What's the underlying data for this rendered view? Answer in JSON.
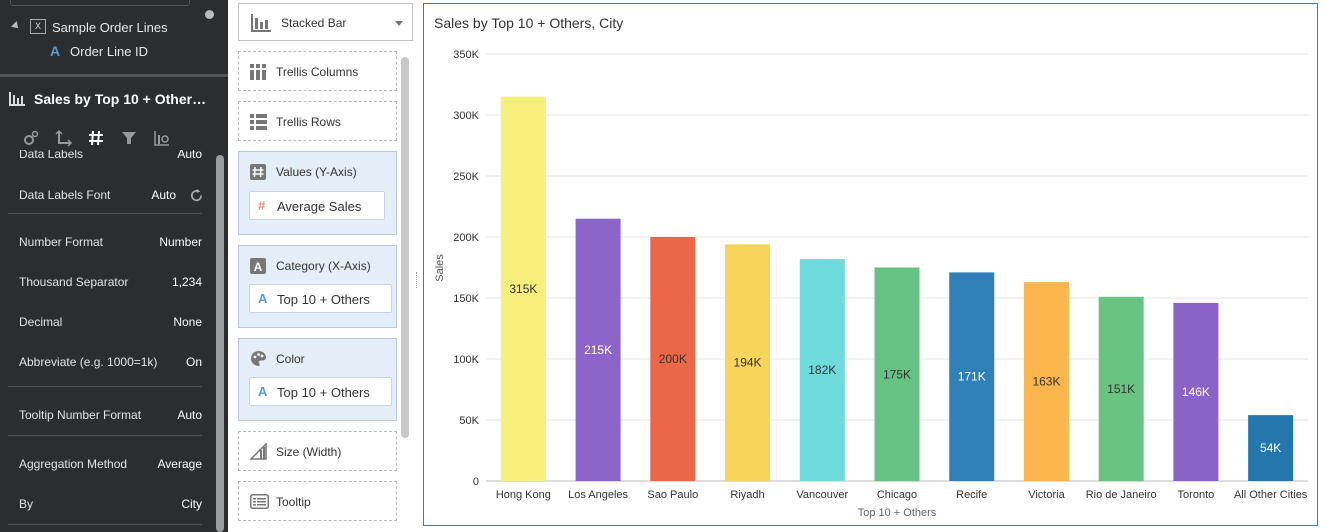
{
  "tree": {
    "dataset_label": "Sample Order Lines",
    "column_label": "Order Line ID"
  },
  "properties": {
    "title": "Sales by Top 10 + Other…",
    "rows": {
      "data_labels": {
        "label": "Data Labels",
        "value": "Auto"
      },
      "data_labels_font": {
        "label": "Data Labels Font",
        "value": "Auto"
      },
      "number_format": {
        "label": "Number Format",
        "value": "Number"
      },
      "thousand_separator": {
        "label": "Thousand Separator",
        "value": "1,234"
      },
      "decimal": {
        "label": "Decimal",
        "value": "None"
      },
      "abbreviate": {
        "label": "Abbreviate (e.g. 1000=1k)",
        "value": "On"
      },
      "tooltip_number_format": {
        "label": "Tooltip Number Format",
        "value": "Auto"
      },
      "aggregation_method": {
        "label": "Aggregation Method",
        "value": "Average"
      },
      "by": {
        "label": "By",
        "value": "City"
      }
    }
  },
  "grammar": {
    "chart_type": "Stacked Bar",
    "trellis_columns": "Trellis Columns",
    "trellis_rows": "Trellis Rows",
    "values_y": {
      "label": "Values (Y-Axis)",
      "item": "Average Sales"
    },
    "category_x": {
      "label": "Category (X-Axis)",
      "item": "Top 10 + Others"
    },
    "color": {
      "label": "Color",
      "item": "Top 10 + Others"
    },
    "size": "Size (Width)",
    "tooltip": "Tooltip"
  },
  "chart": {
    "title": "Sales by Top 10 + Others, City"
  },
  "chart_data": {
    "type": "bar",
    "title": "Sales by Top 10 + Others, City",
    "xlabel": "Top 10 + Others",
    "ylabel": "Sales",
    "ylim": [
      0,
      350000
    ],
    "yticks": [
      "0",
      "50K",
      "100K",
      "150K",
      "200K",
      "250K",
      "300K",
      "350K"
    ],
    "grid": true,
    "categories": [
      "Hong Kong",
      "Los Angeles",
      "Sao Paulo",
      "Riyadh",
      "Vancouver",
      "Chicago",
      "Recife",
      "Victoria",
      "Rio de Janeiro",
      "Toronto",
      "All Other Cities"
    ],
    "values": [
      315000,
      215000,
      200000,
      194000,
      182000,
      175000,
      171000,
      163000,
      151000,
      146000,
      54000
    ],
    "labels": [
      "315K",
      "215K",
      "200K",
      "194K",
      "182K",
      "175K",
      "171K",
      "163K",
      "151K",
      "146K",
      "54K"
    ],
    "colors": [
      "#f6ef7a",
      "#8c63c9",
      "#eb6748",
      "#f7d55d",
      "#6fdbdd",
      "#66c283",
      "#2f7fb8",
      "#fbb54d",
      "#69c482",
      "#8b62c7",
      "#2477ad"
    ],
    "label_colors": [
      "#333333",
      "#ffffff",
      "#333333",
      "#333333",
      "#333333",
      "#333333",
      "#ffffff",
      "#333333",
      "#333333",
      "#ffffff",
      "#ffffff"
    ]
  }
}
